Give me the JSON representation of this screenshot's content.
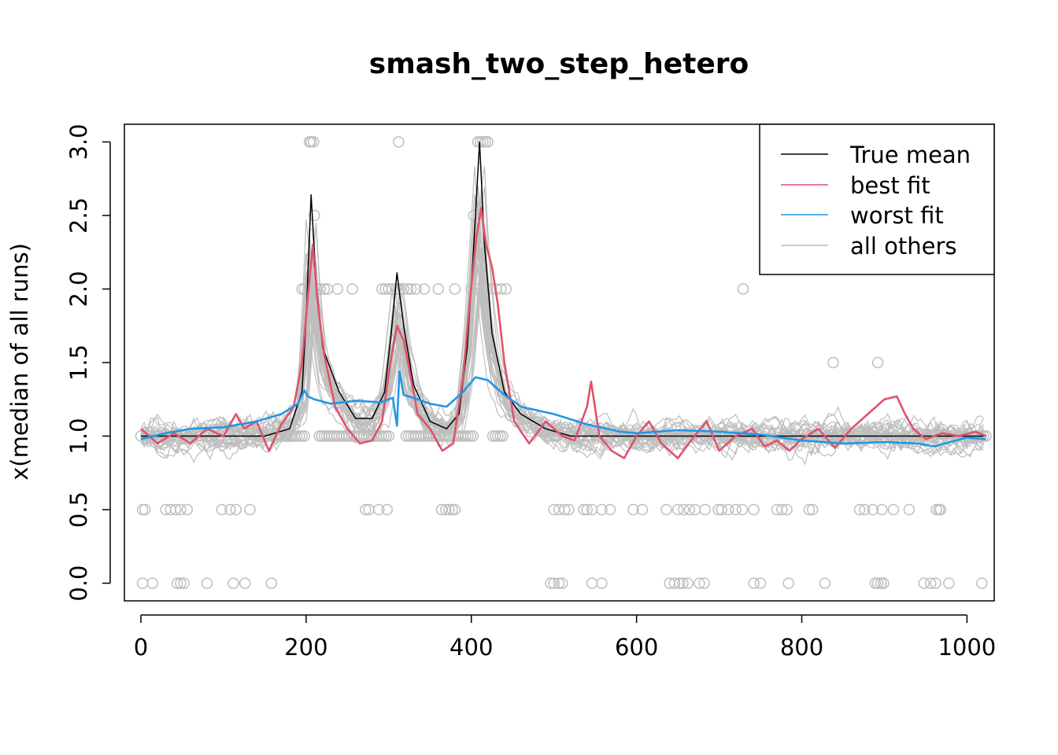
{
  "chart_data": {
    "type": "line",
    "title": "smash_two_step_hetero",
    "xlabel": "",
    "ylabel": "x(median of all runs)",
    "xlim": [
      -20,
      1033
    ],
    "ylim": [
      -0.12,
      3.12
    ],
    "x_ticks": [
      0,
      200,
      400,
      600,
      800,
      1000
    ],
    "y_ticks": [
      0.0,
      0.5,
      1.0,
      1.5,
      2.0,
      2.5,
      3.0
    ],
    "x_tick_labels": [
      "0",
      "200",
      "400",
      "600",
      "800",
      "1000"
    ],
    "y_tick_labels": [
      "0.0",
      "0.5",
      "1.0",
      "1.5",
      "2.0",
      "2.5",
      "3.0"
    ],
    "grid": false,
    "legend_position": "top-right",
    "legend": [
      {
        "label": "True mean",
        "color": "#000000"
      },
      {
        "label": "best fit",
        "color": "#DF536B"
      },
      {
        "label": "worst fit",
        "color": "#2297E6"
      },
      {
        "label": "all others",
        "color": "#BEBEBE"
      }
    ],
    "colors": {
      "true_mean": "#000000",
      "best_fit": "#DF536B",
      "worst_fit": "#2297E6",
      "others": "#BEBEBE",
      "points": "#BEBEBE"
    },
    "n_points": 1024,
    "n_other_runs": 30,
    "series": [
      {
        "name": "True mean",
        "x": [
          0,
          150,
          180,
          195,
          200,
          206,
          212,
          220,
          240,
          260,
          280,
          295,
          303,
          310,
          318,
          330,
          350,
          370,
          385,
          395,
          402,
          410,
          416,
          425,
          440,
          460,
          490,
          520,
          560,
          600,
          700,
          800,
          900,
          1000,
          1023
        ],
        "y": [
          1.0,
          1.0,
          1.05,
          1.3,
          1.8,
          2.64,
          2.05,
          1.6,
          1.3,
          1.12,
          1.12,
          1.3,
          1.7,
          2.11,
          1.75,
          1.35,
          1.1,
          1.05,
          1.15,
          1.6,
          2.2,
          3.0,
          2.3,
          1.7,
          1.3,
          1.15,
          1.05,
          1.0,
          1.0,
          1.0,
          1.0,
          1.0,
          1.0,
          1.0,
          1.0
        ]
      },
      {
        "name": "best fit",
        "x": [
          0,
          20,
          40,
          60,
          80,
          100,
          115,
          125,
          140,
          155,
          170,
          185,
          195,
          203,
          208,
          214,
          222,
          235,
          250,
          265,
          280,
          292,
          302,
          310,
          318,
          325,
          335,
          350,
          365,
          378,
          390,
          398,
          406,
          412,
          418,
          425,
          432,
          440,
          452,
          470,
          490,
          510,
          525,
          540,
          545,
          555,
          570,
          585,
          600,
          615,
          630,
          650,
          670,
          685,
          700,
          720,
          740,
          755,
          770,
          785,
          800,
          820,
          840,
          860,
          880,
          900,
          915,
          925,
          935,
          950,
          970,
          990,
          1010,
          1023
        ],
        "y": [
          1.05,
          0.95,
          1.02,
          0.95,
          1.05,
          1.0,
          1.15,
          1.05,
          1.1,
          0.9,
          1.08,
          1.2,
          1.5,
          2.0,
          2.3,
          1.9,
          1.55,
          1.2,
          1.05,
          0.95,
          0.97,
          1.1,
          1.5,
          1.75,
          1.65,
          1.45,
          1.15,
          1.05,
          0.9,
          0.95,
          1.4,
          1.9,
          2.35,
          2.55,
          2.3,
          2.15,
          1.9,
          1.5,
          1.1,
          0.95,
          1.1,
          1.0,
          0.97,
          1.2,
          1.37,
          1.0,
          0.9,
          0.85,
          1.0,
          1.1,
          0.95,
          0.85,
          1.0,
          1.1,
          0.9,
          1.0,
          1.05,
          0.93,
          0.97,
          0.9,
          0.98,
          1.05,
          0.92,
          1.05,
          1.15,
          1.25,
          1.27,
          1.15,
          1.05,
          0.98,
          1.02,
          1.0,
          1.03,
          1.0
        ]
      },
      {
        "name": "worst fit",
        "x": [
          0,
          30,
          60,
          100,
          140,
          170,
          190,
          198,
          202,
          210,
          230,
          260,
          290,
          305,
          310,
          313,
          318,
          330,
          350,
          370,
          390,
          405,
          420,
          440,
          460,
          500,
          540,
          580,
          600,
          650,
          700,
          750,
          800,
          850,
          900,
          940,
          960,
          980,
          1000,
          1023
        ],
        "y": [
          0.98,
          1.02,
          1.05,
          1.06,
          1.1,
          1.15,
          1.22,
          1.31,
          1.27,
          1.25,
          1.22,
          1.24,
          1.23,
          1.26,
          1.07,
          1.44,
          1.28,
          1.26,
          1.22,
          1.2,
          1.3,
          1.4,
          1.38,
          1.28,
          1.2,
          1.15,
          1.08,
          1.03,
          1.02,
          1.04,
          1.03,
          1.01,
          0.97,
          0.95,
          0.96,
          0.95,
          0.93,
          0.96,
          0.99,
          0.98
        ]
      }
    ],
    "scatter_points": {
      "y3.0": [
        204,
        206,
        209,
        312,
        408,
        411,
        414,
        417,
        420
      ],
      "y2.5": [
        210,
        403
      ],
      "y2.0": [
        195,
        198,
        204,
        207,
        213,
        217,
        222,
        226,
        238,
        256,
        292,
        296,
        300,
        304,
        309,
        313,
        318,
        323,
        327,
        333,
        343,
        360,
        380,
        400,
        405,
        414,
        418,
        424,
        430,
        436,
        442,
        729
      ],
      "y1.5": [
        838,
        892
      ],
      "y0.5": [
        2,
        5,
        30,
        36,
        42,
        48,
        56,
        98,
        108,
        115,
        132,
        272,
        276,
        288,
        298,
        364,
        369,
        373,
        377,
        380,
        500,
        506,
        513,
        518,
        536,
        540,
        546,
        558,
        568,
        596,
        607,
        636,
        650,
        657,
        664,
        671,
        683,
        699,
        703,
        711,
        720,
        728,
        742,
        770,
        776,
        782,
        809,
        813,
        870,
        876,
        886,
        897,
        911,
        930,
        963,
        966,
        968
      ],
      "y0.0": [
        2,
        14,
        44,
        48,
        52,
        80,
        112,
        126,
        158,
        496,
        500,
        506,
        510,
        546,
        558,
        640,
        646,
        652,
        656,
        662,
        676,
        682,
        742,
        750,
        784,
        828,
        889,
        892,
        896,
        899,
        948,
        956,
        962,
        978,
        1018
      ]
    }
  }
}
